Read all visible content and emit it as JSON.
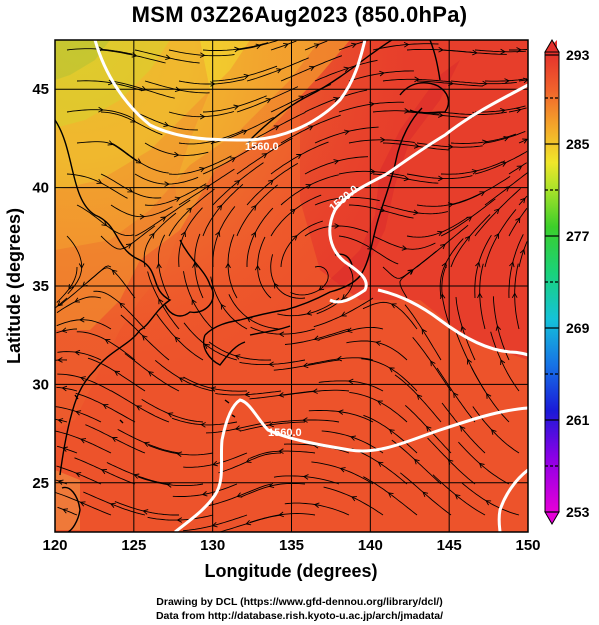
{
  "title": "MSM 03Z26Aug2023 (850.0hPa)",
  "map": {
    "xlabel": "Longitude (degrees)",
    "ylabel": "Latitude  (degrees)",
    "lon_range": [
      120,
      150
    ],
    "lat_range": [
      22.5,
      47.5
    ],
    "lon_ticks": [
      "120",
      "125",
      "130",
      "135",
      "140",
      "145",
      "150"
    ],
    "lat_ticks": [
      "25",
      "30",
      "35",
      "40",
      "45"
    ],
    "grid": true,
    "field": "temperature (K) shaded with wind streamlines",
    "contour_labels": [
      "1560.0",
      "1530.0",
      "1500.0",
      "1560.0"
    ],
    "colors": {
      "warm": "#e8412a",
      "hot": "#e6332c",
      "orange": "#f07d2a",
      "yellow": "#e8e92a",
      "green": "#7fd23c"
    }
  },
  "colorbar": {
    "min": 253,
    "max": 293,
    "labels": [
      "293",
      "285",
      "277",
      "269",
      "261",
      "253"
    ],
    "dashed_ticks": [
      289,
      281,
      273,
      265,
      257
    ]
  },
  "footer": {
    "line1": "Drawing by DCL (https://www.gfd-dennou.org/library/dcl/)",
    "line2": "Data from http://database.rish.kyoto-u.ac.jp/arch/jmadata/"
  }
}
